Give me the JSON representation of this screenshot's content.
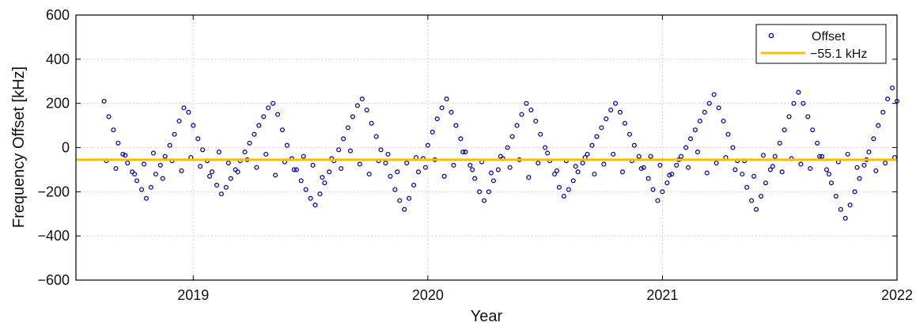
{
  "chart_data": {
    "type": "scatter",
    "xlabel": "Year",
    "ylabel": "Frequency Offset [kHz]",
    "ylim": [
      -600,
      600
    ],
    "yticks": [
      -600,
      -400,
      -200,
      0,
      200,
      400,
      600
    ],
    "xlim": [
      2018.5,
      2022.0
    ],
    "xticks": [
      2019,
      2020,
      2021,
      2022
    ],
    "xtick_labels": [
      "2019",
      "2020",
      "2021",
      "2022"
    ],
    "grid": true,
    "legend_position": "top-right",
    "series": [
      {
        "name": "Offset",
        "kind": "scatter",
        "color": "#0b0ba6",
        "x": [
          2018.62,
          2018.64,
          2018.66,
          2018.68,
          2018.7,
          2018.72,
          2018.74,
          2018.76,
          2018.78,
          2018.8,
          2018.82,
          2018.84,
          2018.86,
          2018.88,
          2018.9,
          2018.92,
          2018.94,
          2018.96,
          2018.98,
          2019.0,
          2019.02,
          2019.04,
          2019.06,
          2019.08,
          2019.1,
          2019.12,
          2019.14,
          2019.16,
          2019.18,
          2019.2,
          2019.22,
          2019.24,
          2019.26,
          2019.28,
          2019.3,
          2019.32,
          2019.34,
          2019.36,
          2019.38,
          2019.4,
          2019.42,
          2019.44,
          2019.46,
          2019.48,
          2019.5,
          2019.52,
          2019.54,
          2019.56,
          2019.58,
          2019.6,
          2019.62,
          2019.64,
          2019.66,
          2019.68,
          2019.7,
          2019.72,
          2019.74,
          2019.76,
          2019.78,
          2019.8,
          2019.82,
          2019.84,
          2019.86,
          2019.88,
          2019.9,
          2019.92,
          2019.94,
          2019.96,
          2019.98,
          2020.0,
          2020.02,
          2020.04,
          2020.06,
          2020.08,
          2020.1,
          2020.12,
          2020.14,
          2020.16,
          2020.18,
          2020.2,
          2020.22,
          2020.24,
          2020.26,
          2020.28,
          2020.3,
          2020.32,
          2020.34,
          2020.36,
          2020.38,
          2020.4,
          2020.42,
          2020.44,
          2020.46,
          2020.48,
          2020.5,
          2020.52,
          2020.54,
          2020.56,
          2020.58,
          2020.6,
          2020.62,
          2020.64,
          2020.66,
          2020.68,
          2020.7,
          2020.72,
          2020.74,
          2020.76,
          2020.78,
          2020.8,
          2020.82,
          2020.84,
          2020.86,
          2020.88,
          2020.9,
          2020.92,
          2020.94,
          2020.96,
          2020.98,
          2021.0,
          2021.02,
          2021.04,
          2021.06,
          2021.08,
          2021.1,
          2021.12,
          2021.14,
          2021.16,
          2021.18,
          2021.2,
          2021.22,
          2021.24,
          2021.26,
          2021.28,
          2021.3,
          2021.32,
          2021.34,
          2021.36,
          2021.38,
          2021.4,
          2021.42,
          2021.44,
          2021.46,
          2021.48,
          2021.5,
          2021.52,
          2021.54,
          2021.56,
          2021.58,
          2021.6,
          2021.62,
          2021.64,
          2021.66,
          2021.68,
          2021.7,
          2021.72,
          2021.74,
          2021.76,
          2021.78,
          2021.8,
          2021.82,
          2021.84,
          2021.86,
          2021.88,
          2021.9,
          2021.92,
          2021.94,
          2021.96,
          2021.98,
          2022.0,
          2018.63,
          2018.67,
          2018.71,
          2018.75,
          2018.79,
          2018.83,
          2018.87,
          2018.91,
          2018.95,
          2018.99,
          2019.03,
          2019.07,
          2019.11,
          2019.15,
          2019.19,
          2019.23,
          2019.27,
          2019.31,
          2019.35,
          2019.39,
          2019.43,
          2019.47,
          2019.51,
          2019.55,
          2019.59,
          2019.63,
          2019.67,
          2019.71,
          2019.75,
          2019.79,
          2019.83,
          2019.87,
          2019.91,
          2019.95,
          2019.99,
          2020.03,
          2020.07,
          2020.11,
          2020.15,
          2020.19,
          2020.23,
          2020.27,
          2020.31,
          2020.35,
          2020.39,
          2020.43,
          2020.47,
          2020.51,
          2020.55,
          2020.59,
          2020.63,
          2020.67,
          2020.71,
          2020.75,
          2020.79,
          2020.83,
          2020.87,
          2020.91,
          2020.95,
          2020.99,
          2021.03,
          2021.07,
          2021.11,
          2021.15,
          2021.19,
          2021.23,
          2021.27,
          2021.31,
          2021.35,
          2021.39,
          2021.43,
          2021.47,
          2021.51,
          2021.55,
          2021.59,
          2021.63,
          2021.67,
          2021.71,
          2021.75,
          2021.79,
          2021.83,
          2021.87,
          2021.91,
          2021.95,
          2021.99
        ],
        "y": [
          210,
          140,
          80,
          20,
          -30,
          -70,
          -110,
          -150,
          -190,
          -230,
          -180,
          -120,
          -80,
          -40,
          10,
          60,
          120,
          180,
          160,
          100,
          40,
          -10,
          -60,
          -110,
          -170,
          -210,
          -180,
          -140,
          -100,
          -60,
          -20,
          20,
          60,
          100,
          140,
          180,
          200,
          150,
          80,
          10,
          -50,
          -100,
          -150,
          -190,
          -230,
          -260,
          -210,
          -160,
          -110,
          -60,
          -10,
          40,
          90,
          140,
          190,
          220,
          170,
          110,
          50,
          -10,
          -70,
          -130,
          -190,
          -240,
          -280,
          -230,
          -170,
          -110,
          -50,
          10,
          70,
          130,
          180,
          220,
          160,
          100,
          40,
          -20,
          -80,
          -140,
          -200,
          -240,
          -200,
          -150,
          -100,
          -50,
          0,
          50,
          100,
          150,
          200,
          170,
          120,
          60,
          0,
          -60,
          -120,
          -180,
          -220,
          -190,
          -150,
          -110,
          -70,
          -30,
          10,
          50,
          90,
          130,
          170,
          200,
          160,
          110,
          60,
          10,
          -40,
          -90,
          -140,
          -190,
          -240,
          -200,
          -160,
          -120,
          -80,
          -40,
          0,
          40,
          80,
          120,
          160,
          200,
          240,
          180,
          120,
          60,
          0,
          -60,
          -120,
          -180,
          -240,
          -280,
          -220,
          -160,
          -100,
          -40,
          20,
          80,
          140,
          200,
          250,
          200,
          140,
          80,
          20,
          -40,
          -100,
          -160,
          -220,
          -280,
          -320,
          -260,
          -200,
          -140,
          -80,
          -20,
          40,
          100,
          160,
          220,
          270,
          210,
          -60,
          -95,
          -35,
          -120,
          -75,
          -25,
          -140,
          -60,
          -105,
          -45,
          -85,
          -130,
          -20,
          -70,
          -110,
          -55,
          -90,
          -30,
          -125,
          -65,
          -100,
          -40,
          -80,
          -135,
          -50,
          -95,
          -15,
          -75,
          -120,
          -60,
          -30,
          -110,
          -70,
          -45,
          -90,
          -55,
          -130,
          -80,
          -20,
          -100,
          -65,
          -115,
          -40,
          -90,
          -55,
          -135,
          -70,
          -25,
          -105,
          -60,
          -85,
          -45,
          -120,
          -75,
          -30,
          -110,
          -60,
          -95,
          -40,
          -80,
          -125,
          -55,
          -90,
          -20,
          -115,
          -70,
          -45,
          -100,
          -60,
          -130,
          -35,
          -85,
          -110,
          -50,
          -75,
          -95,
          -40,
          -120,
          -65,
          -30,
          -90,
          -55,
          -105,
          -70,
          -45
        ]
      },
      {
        "name": "−55.1 kHz",
        "kind": "line",
        "color": "#f5c000",
        "x": [
          2018.5,
          2022.0
        ],
        "y": [
          -55.1,
          -55.1
        ]
      }
    ]
  }
}
